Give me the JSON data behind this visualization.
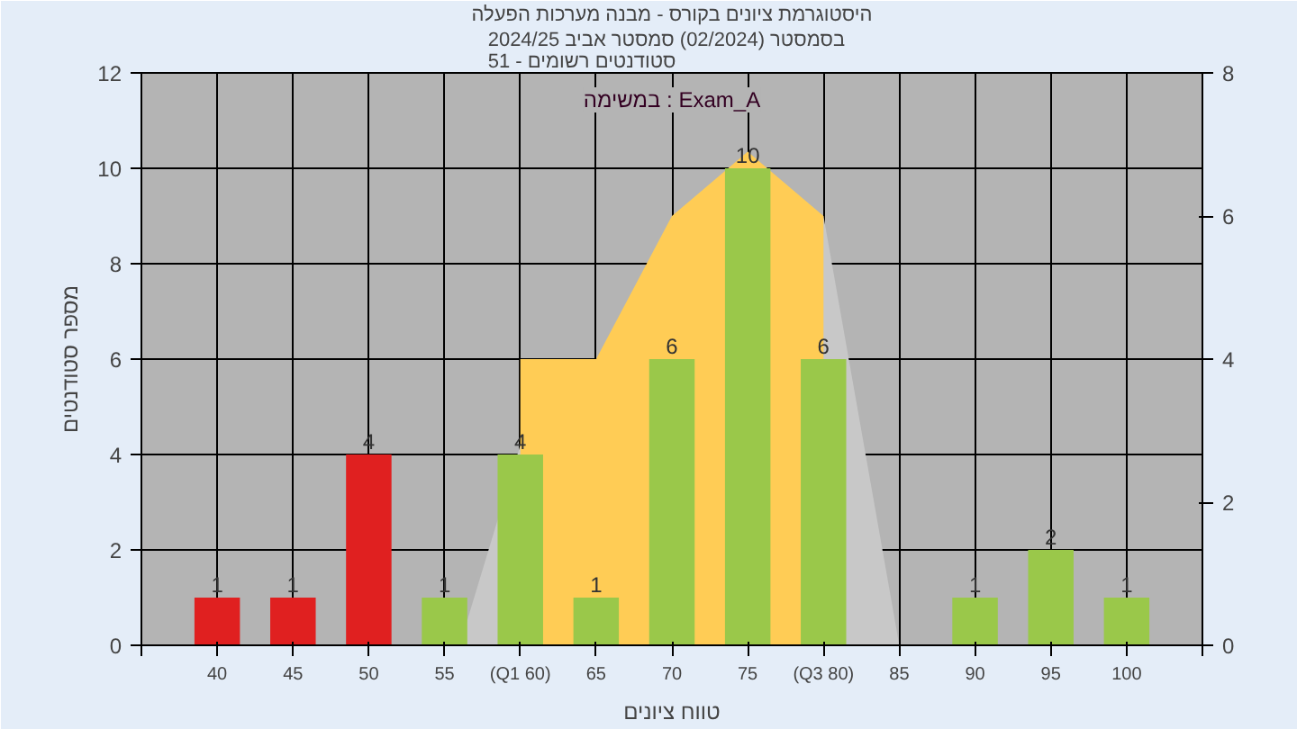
{
  "chart_data": {
    "type": "bar",
    "title": "היסטוגרמת ציונים בקורס - מבנה מערכות הפעלה",
    "subtitle": "בסמסטר  (02/2024)  סמסטר אביב 2024/25\nסטודנטים רשומים - 51",
    "xlabel": "טווח ציונים",
    "ylabel": "מספר סטודנטים",
    "annotations": [
      "במשימה : Exam_A"
    ],
    "x": [
      40,
      45,
      50,
      55,
      60,
      65,
      70,
      75,
      80,
      85,
      90,
      95,
      100
    ],
    "xlim": [
      35,
      105
    ],
    "xticks": [
      {
        "value": 35,
        "label": null
      },
      {
        "value": 40,
        "label": "40"
      },
      {
        "value": 45,
        "label": "45"
      },
      {
        "value": 50,
        "label": "50"
      },
      {
        "value": 55,
        "label": "55"
      },
      {
        "value": 60,
        "label": "(Q1 60)"
      },
      {
        "value": 65,
        "label": "65"
      },
      {
        "value": 70,
        "label": "70"
      },
      {
        "value": 75,
        "label": "75"
      },
      {
        "value": 80,
        "label": "(Q3 80)"
      },
      {
        "value": 85,
        "label": "85"
      },
      {
        "value": 90,
        "label": "90"
      },
      {
        "value": 95,
        "label": "95"
      },
      {
        "value": 100,
        "label": "100"
      },
      {
        "value": 105,
        "label": null
      }
    ],
    "ylim": [
      0,
      12
    ],
    "yticks": [
      0,
      2,
      4,
      6,
      8,
      10,
      12
    ],
    "y2lim": [
      0,
      8
    ],
    "y2ticks": [
      0,
      2,
      4,
      6,
      8
    ],
    "grid": true,
    "series": [
      {
        "type": "area",
        "axis": "y2",
        "color": "#c8c8c8",
        "x": [
          56,
          60,
          70,
          80,
          85
        ],
        "values": [
          0,
          2.8,
          null,
          6,
          0
        ]
      },
      {
        "type": "area",
        "axis": "y2",
        "color": "#ffcc55",
        "x": [
          60,
          65,
          70,
          75,
          80
        ],
        "values": [
          4,
          4,
          6,
          6.9,
          6
        ]
      },
      {
        "colors": [
          "#e02020",
          "#e02020",
          "#e02020",
          "#9ac84a",
          "#9ac84a",
          "#9ac84a",
          "#9ac84a",
          "#9ac84a",
          "#9ac84a",
          "#9ac84a",
          "#9ac84a",
          "#9ac84a",
          "#9ac84a"
        ],
        "values": [
          1,
          1,
          4,
          1,
          4,
          1,
          6,
          10,
          6,
          0,
          1,
          2,
          1
        ],
        "value_labels": [
          "1",
          "1",
          "4",
          "1",
          "4",
          "1",
          "6",
          "10",
          "6",
          null,
          "1",
          "2",
          "1"
        ]
      }
    ]
  }
}
